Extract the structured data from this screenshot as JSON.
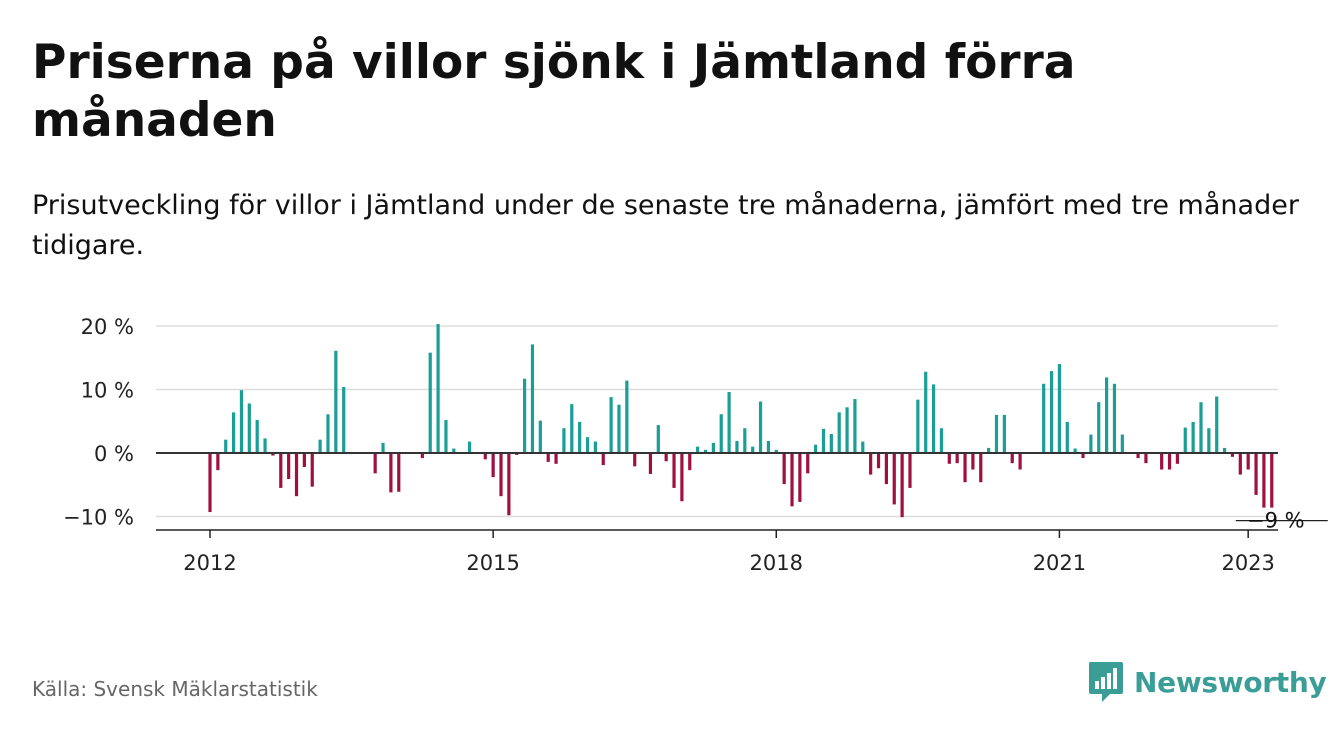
{
  "title": "Priserna på villor sjönk i Jämtland förra månaden",
  "subtitle": "Prisutveckling för villor i Jämtland under de senaste tre månaderna, jämfört med tre månader tidigare.",
  "source": "Källa: Svensk Mäklarstatistik",
  "brand": "Newsworthy",
  "colors": {
    "positive": "#1a9e96",
    "negative": "#a0103f",
    "grid": "#dddddd",
    "zero": "#333333",
    "brand": "#3a9e97"
  },
  "chart_data": {
    "type": "bar",
    "x_start": "2012-01",
    "x_end": "2023-01",
    "y_ticks": [
      20,
      10,
      0,
      -10
    ],
    "y_tick_labels": [
      "20 %",
      "10 %",
      "0 %",
      "−10 %"
    ],
    "x_tick_labels": [
      "2012",
      "2015",
      "2018",
      "2021",
      "2023"
    ],
    "x_tick_years": [
      2012,
      2015,
      2018,
      2021,
      2023
    ],
    "ylim": [
      -10.5,
      20.5
    ],
    "last_value_label": "−9 %",
    "unit": "%",
    "values": [
      -9.3,
      -2.7,
      2.1,
      6.4,
      9.9,
      7.8,
      5.2,
      2.3,
      -0.4,
      -5.5,
      -4.1,
      -6.8,
      -2.2,
      -5.3,
      2.1,
      6.1,
      16.1,
      10.4,
      0,
      0,
      0,
      -3.2,
      1.6,
      -6.2,
      -6.1,
      0,
      0,
      -0.8,
      15.8,
      20.3,
      5.2,
      0.7,
      0,
      1.8,
      0,
      -1,
      -3.8,
      -6.8,
      -9.8,
      -0.3,
      11.7,
      17.1,
      5.1,
      -1.4,
      -1.7,
      3.9,
      7.7,
      4.9,
      2.5,
      1.8,
      -1.9,
      8.8,
      7.6,
      11.4,
      -2.1,
      0,
      -3.3,
      4.4,
      -1.3,
      -5.5,
      -7.6,
      -2.7,
      1,
      0.5,
      1.6,
      6.1,
      9.6,
      1.9,
      3.9,
      1,
      8.1,
      1.9,
      0.5,
      -4.9,
      -8.4,
      -7.7,
      -3.2,
      1.3,
      3.8,
      3,
      6.4,
      7.2,
      8.5,
      1.8,
      -3.4,
      -2.4,
      -4.9,
      -8.1,
      -10.1,
      -5.5,
      8.4,
      12.8,
      10.8,
      3.9,
      -1.7,
      -1.6,
      -4.6,
      -2.6,
      -4.6,
      0.8,
      6,
      6,
      -1.6,
      -2.6,
      0,
      0,
      10.9,
      12.9,
      14,
      4.9,
      0.7,
      -0.8,
      2.9,
      8,
      11.9,
      10.9,
      2.9,
      0,
      -0.8,
      -1.6,
      0,
      -2.6,
      -2.6,
      -1.7,
      4,
      4.9,
      8,
      3.9,
      8.9,
      0.8,
      -0.6,
      -3.4,
      -2.6,
      -6.6,
      -8.6,
      -8.6
    ]
  }
}
